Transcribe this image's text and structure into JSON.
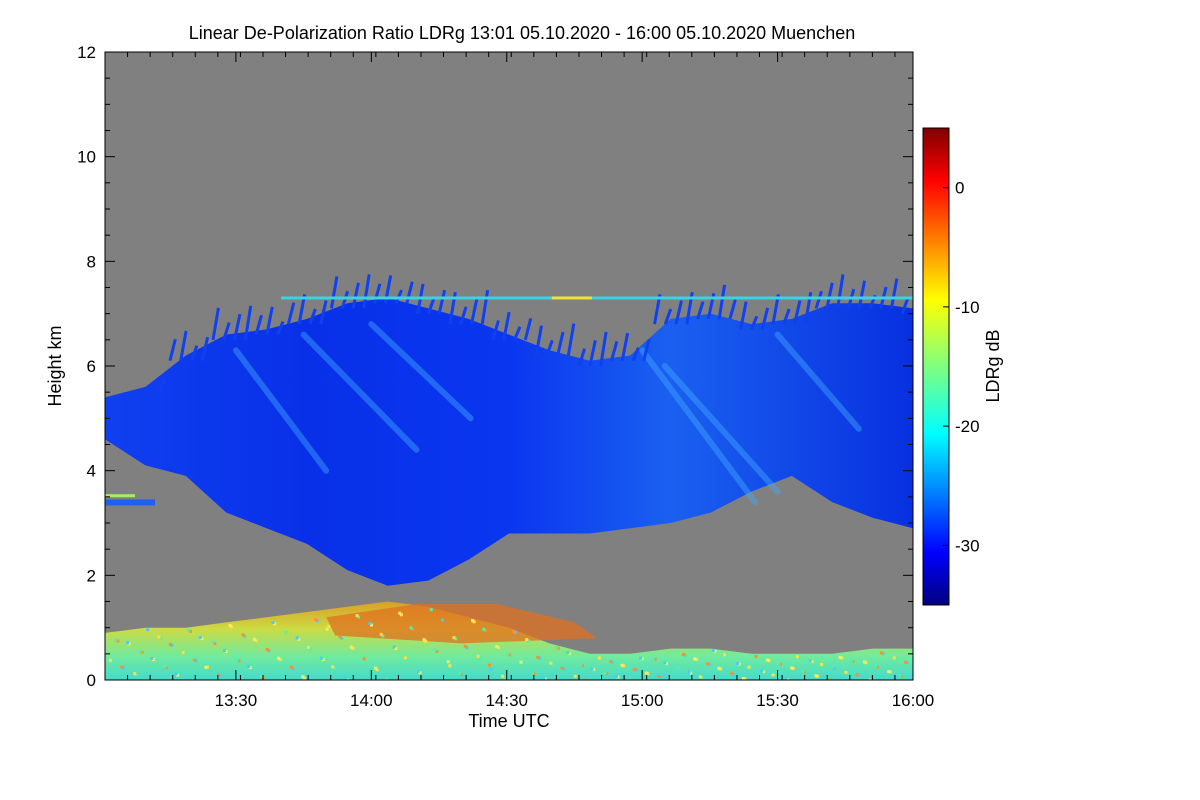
{
  "chart_data": {
    "type": "heatmap",
    "title": "Linear De-Polarization Ratio LDRg   13:01 05.10.2020 - 16:00 05.10.2020 Muenchen",
    "xlabel": "Time UTC",
    "ylabel": "Height km",
    "x_ticks": [
      "13:30",
      "14:00",
      "14:30",
      "15:00",
      "15:30",
      "16:00"
    ],
    "x_tick_minutes": [
      810,
      840,
      870,
      900,
      930,
      960
    ],
    "xlim_minutes": [
      781,
      960
    ],
    "y_ticks": [
      "0",
      "2",
      "4",
      "6",
      "8",
      "10",
      "12"
    ],
    "y_tick_values": [
      0,
      2,
      4,
      6,
      8,
      10,
      12
    ],
    "ylim": [
      0,
      12
    ],
    "colorbar": {
      "label": "LDRg dB",
      "ticks": [
        "0",
        "-10",
        "-20",
        "-30"
      ],
      "tick_values": [
        0,
        -10,
        -20,
        -30
      ],
      "range": [
        -35,
        5
      ]
    },
    "colors": {
      "no_data": "#808080",
      "background": "#ffffff"
    },
    "features": {
      "cirrus_cloud": {
        "ldr_db": -30,
        "top_km": [
          5.4,
          5.6,
          6.2,
          6.6,
          6.7,
          6.9,
          7.2,
          7.3,
          7.1,
          6.9,
          6.6,
          6.3,
          6.1,
          6.2,
          6.9,
          7.0,
          6.8,
          6.9,
          7.2,
          7.2,
          7.1
        ],
        "base_km": [
          4.6,
          4.1,
          3.9,
          3.2,
          2.9,
          2.6,
          2.1,
          1.8,
          1.9,
          2.3,
          2.8,
          2.8,
          2.8,
          2.9,
          3.0,
          3.2,
          3.6,
          3.9,
          3.4,
          3.1,
          2.9
        ]
      },
      "boundary_layer_aerosol": {
        "ldr_db": -15,
        "top_km": [
          0.9,
          1.0,
          1.0,
          1.1,
          1.2,
          1.3,
          1.4,
          1.5,
          1.4,
          1.2,
          1.0,
          0.7,
          0.5,
          0.5,
          0.6,
          0.6,
          0.5,
          0.5,
          0.5,
          0.6,
          0.6
        ]
      },
      "elevated_aerosol_layer": {
        "ldr_db": -4
      },
      "thin_layer_7_3km": {
        "height_km": 7.3,
        "ldr_db": -20
      }
    }
  }
}
